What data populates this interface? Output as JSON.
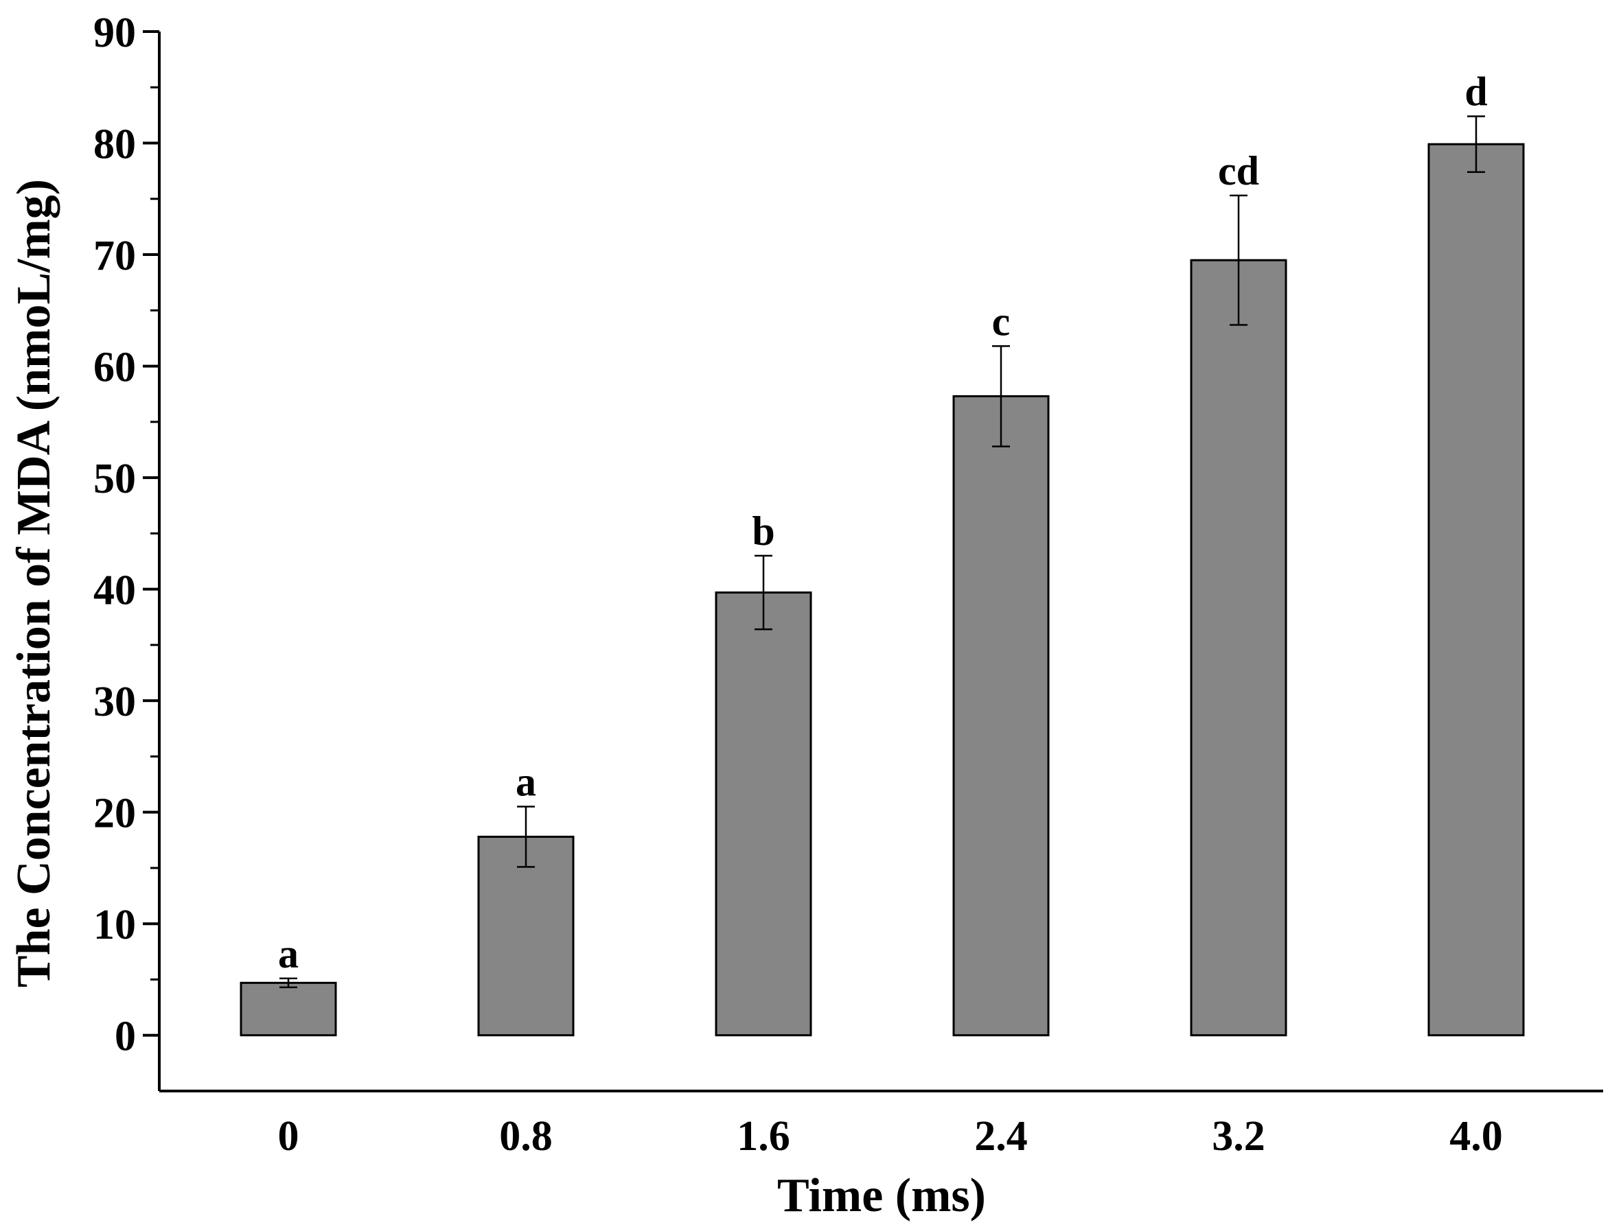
{
  "chart_data": {
    "type": "bar",
    "title": "",
    "xlabel": "Time (ms)",
    "ylabel": "The Concentration of MDA (nmoL/mg)",
    "categories": [
      "0",
      "0.8",
      "1.6",
      "2.4",
      "3.2",
      "4.0"
    ],
    "values": [
      4.7,
      17.8,
      39.7,
      57.3,
      69.5,
      79.9
    ],
    "errors": [
      0.4,
      2.7,
      3.3,
      4.5,
      5.8,
      2.5
    ],
    "significance": [
      "a",
      "a",
      "b",
      "c",
      "cd",
      "d"
    ],
    "ylim": [
      -5,
      90
    ],
    "yticks": [
      "0",
      "10",
      "20",
      "30",
      "40",
      "50",
      "60",
      "70",
      "80",
      "90"
    ],
    "grid": false,
    "legend": "none",
    "colors": {
      "bar": "#868686",
      "stroke": "#000000"
    }
  }
}
